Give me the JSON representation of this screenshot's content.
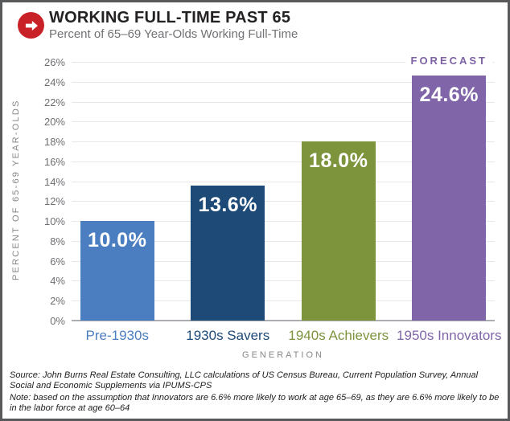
{
  "header": {
    "title": "WORKING FULL-TIME PAST 65",
    "subtitle": "Percent of 65–69 Year-Olds Working Full-Time",
    "icon_color": "#c82128"
  },
  "chart_data": {
    "type": "bar",
    "title": "WORKING FULL-TIME PAST 65",
    "subtitle": "Percent of 65–69 Year-Olds Working Full-Time",
    "categories": [
      "Pre-1930s",
      "1930s Savers",
      "1940s Achievers",
      "1950s Innovators"
    ],
    "values": [
      10.0,
      13.6,
      18.0,
      24.6
    ],
    "value_labels": [
      "10.0%",
      "13.6%",
      "18.0%",
      "24.6%"
    ],
    "bar_colors": [
      "#4b7ec0",
      "#1e4a78",
      "#7d943c",
      "#8066a9"
    ],
    "xlabel": "GENERATION",
    "ylabel": "PERCENT OF 65-69 YEAR-OLDS",
    "ylim": [
      0,
      26
    ],
    "ytick_step": 2,
    "ytick_labels": [
      "0%",
      "2%",
      "4%",
      "6%",
      "8%",
      "10%",
      "12%",
      "14%",
      "16%",
      "18%",
      "20%",
      "22%",
      "24%",
      "26%"
    ],
    "grid": "horizontal",
    "legend": "none",
    "annotation": {
      "label": "FORECAST",
      "category_index": 3,
      "color": "#7e62a5"
    }
  },
  "footer": {
    "source": "Source: John Burns Real Estate Consulting, LLC calculations of US Census Bureau, Current Population Survey, Annual Social and Economic Supplements via IPUMS-CPS",
    "note": "Note: based on the assumption that Innovators are 6.6% more likely to work at age 65–69, as they are 6.6% more likely to be in the labor force at age 60–64"
  }
}
